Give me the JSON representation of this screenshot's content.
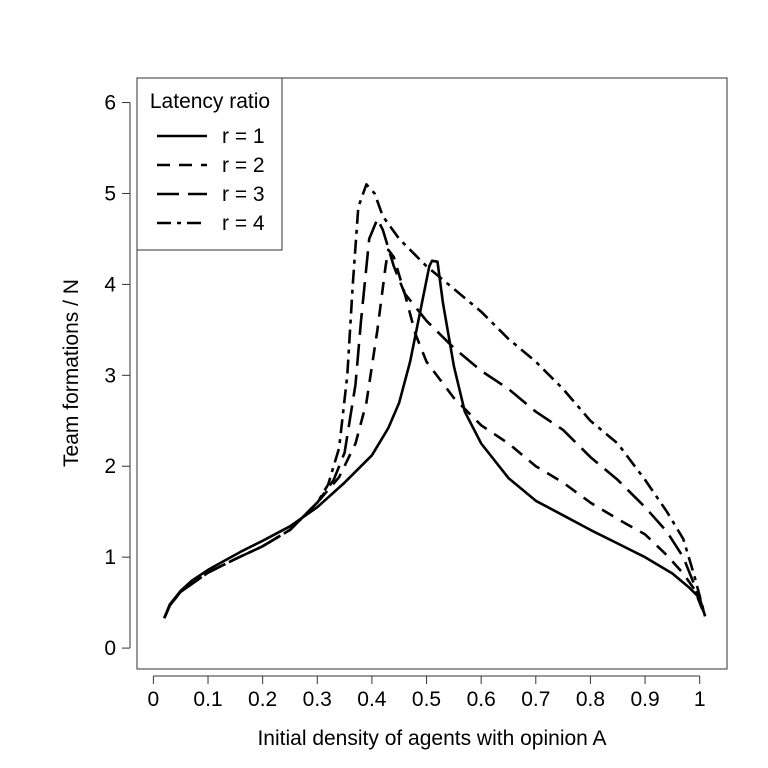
{
  "chart_data": {
    "type": "line",
    "title": "",
    "xlabel": "Initial density of agents with opinion A",
    "ylabel": "Team formations / N",
    "xlim": [
      -0.03,
      1.05
    ],
    "ylim": [
      -0.23,
      6.27
    ],
    "xticks": [
      0,
      0.1,
      0.2,
      0.3,
      0.4,
      0.5,
      0.6,
      0.7,
      0.8,
      0.9,
      1
    ],
    "xtick_labels": [
      "0",
      "0.1",
      "0.2",
      "0.3",
      "0.4",
      "0.5",
      "0.6",
      "0.7",
      "0.8",
      "0.9",
      "1"
    ],
    "yticks": [
      0,
      1,
      2,
      3,
      4,
      5,
      6
    ],
    "ytick_labels": [
      "0",
      "1",
      "2",
      "3",
      "4",
      "5",
      "6"
    ],
    "grid": false,
    "legend": {
      "title": "Latency ratio",
      "position": "top-left"
    },
    "series": [
      {
        "name": "r = 1",
        "dash": "solid",
        "points": [
          [
            0.02,
            0.33
          ],
          [
            0.03,
            0.48
          ],
          [
            0.05,
            0.63
          ],
          [
            0.07,
            0.74
          ],
          [
            0.1,
            0.86
          ],
          [
            0.13,
            0.96
          ],
          [
            0.16,
            1.06
          ],
          [
            0.2,
            1.18
          ],
          [
            0.25,
            1.34
          ],
          [
            0.3,
            1.55
          ],
          [
            0.35,
            1.82
          ],
          [
            0.4,
            2.12
          ],
          [
            0.43,
            2.42
          ],
          [
            0.45,
            2.7
          ],
          [
            0.47,
            3.15
          ],
          [
            0.49,
            3.75
          ],
          [
            0.505,
            4.2
          ],
          [
            0.51,
            4.26
          ],
          [
            0.52,
            4.25
          ],
          [
            0.53,
            3.8
          ],
          [
            0.55,
            3.1
          ],
          [
            0.57,
            2.6
          ],
          [
            0.6,
            2.25
          ],
          [
            0.65,
            1.87
          ],
          [
            0.7,
            1.62
          ],
          [
            0.75,
            1.46
          ],
          [
            0.8,
            1.3
          ],
          [
            0.85,
            1.15
          ],
          [
            0.9,
            1.0
          ],
          [
            0.95,
            0.82
          ],
          [
            0.98,
            0.67
          ],
          [
            1.0,
            0.55
          ],
          [
            1.01,
            0.35
          ]
        ]
      },
      {
        "name": "r = 2",
        "dash": "short-dash",
        "points": [
          [
            0.02,
            0.33
          ],
          [
            0.03,
            0.47
          ],
          [
            0.05,
            0.62
          ],
          [
            0.1,
            0.83
          ],
          [
            0.15,
            0.98
          ],
          [
            0.2,
            1.12
          ],
          [
            0.25,
            1.3
          ],
          [
            0.3,
            1.6
          ],
          [
            0.34,
            1.88
          ],
          [
            0.37,
            2.25
          ],
          [
            0.39,
            2.7
          ],
          [
            0.41,
            3.5
          ],
          [
            0.425,
            4.2
          ],
          [
            0.43,
            4.38
          ],
          [
            0.44,
            4.3
          ],
          [
            0.46,
            3.9
          ],
          [
            0.48,
            3.45
          ],
          [
            0.5,
            3.15
          ],
          [
            0.55,
            2.75
          ],
          [
            0.6,
            2.45
          ],
          [
            0.65,
            2.25
          ],
          [
            0.7,
            2.0
          ],
          [
            0.75,
            1.82
          ],
          [
            0.8,
            1.6
          ],
          [
            0.85,
            1.42
          ],
          [
            0.9,
            1.25
          ],
          [
            0.94,
            1.02
          ],
          [
            0.97,
            0.82
          ],
          [
            0.99,
            0.65
          ],
          [
            1.01,
            0.35
          ]
        ]
      },
      {
        "name": "r = 3",
        "dash": "long-dash",
        "points": [
          [
            0.02,
            0.33
          ],
          [
            0.03,
            0.47
          ],
          [
            0.05,
            0.62
          ],
          [
            0.1,
            0.83
          ],
          [
            0.15,
            0.98
          ],
          [
            0.2,
            1.12
          ],
          [
            0.25,
            1.3
          ],
          [
            0.3,
            1.6
          ],
          [
            0.33,
            1.85
          ],
          [
            0.35,
            2.15
          ],
          [
            0.37,
            2.9
          ],
          [
            0.38,
            3.6
          ],
          [
            0.395,
            4.5
          ],
          [
            0.41,
            4.72
          ],
          [
            0.42,
            4.6
          ],
          [
            0.44,
            4.2
          ],
          [
            0.46,
            3.9
          ],
          [
            0.5,
            3.6
          ],
          [
            0.55,
            3.3
          ],
          [
            0.6,
            3.05
          ],
          [
            0.65,
            2.85
          ],
          [
            0.7,
            2.6
          ],
          [
            0.75,
            2.4
          ],
          [
            0.8,
            2.1
          ],
          [
            0.85,
            1.85
          ],
          [
            0.9,
            1.55
          ],
          [
            0.94,
            1.28
          ],
          [
            0.97,
            1.0
          ],
          [
            0.99,
            0.7
          ],
          [
            1.01,
            0.35
          ]
        ]
      },
      {
        "name": "r = 4",
        "dash": "dash-dot",
        "points": [
          [
            0.02,
            0.33
          ],
          [
            0.03,
            0.47
          ],
          [
            0.05,
            0.62
          ],
          [
            0.1,
            0.83
          ],
          [
            0.15,
            0.98
          ],
          [
            0.2,
            1.12
          ],
          [
            0.25,
            1.3
          ],
          [
            0.3,
            1.6
          ],
          [
            0.32,
            1.8
          ],
          [
            0.34,
            2.2
          ],
          [
            0.355,
            3.0
          ],
          [
            0.365,
            4.0
          ],
          [
            0.375,
            4.85
          ],
          [
            0.39,
            5.1
          ],
          [
            0.405,
            5.0
          ],
          [
            0.42,
            4.75
          ],
          [
            0.45,
            4.5
          ],
          [
            0.5,
            4.2
          ],
          [
            0.55,
            3.95
          ],
          [
            0.6,
            3.7
          ],
          [
            0.65,
            3.4
          ],
          [
            0.7,
            3.15
          ],
          [
            0.75,
            2.85
          ],
          [
            0.8,
            2.5
          ],
          [
            0.85,
            2.25
          ],
          [
            0.9,
            1.85
          ],
          [
            0.94,
            1.5
          ],
          [
            0.97,
            1.2
          ],
          [
            0.99,
            0.8
          ],
          [
            1.01,
            0.35
          ]
        ]
      }
    ]
  }
}
